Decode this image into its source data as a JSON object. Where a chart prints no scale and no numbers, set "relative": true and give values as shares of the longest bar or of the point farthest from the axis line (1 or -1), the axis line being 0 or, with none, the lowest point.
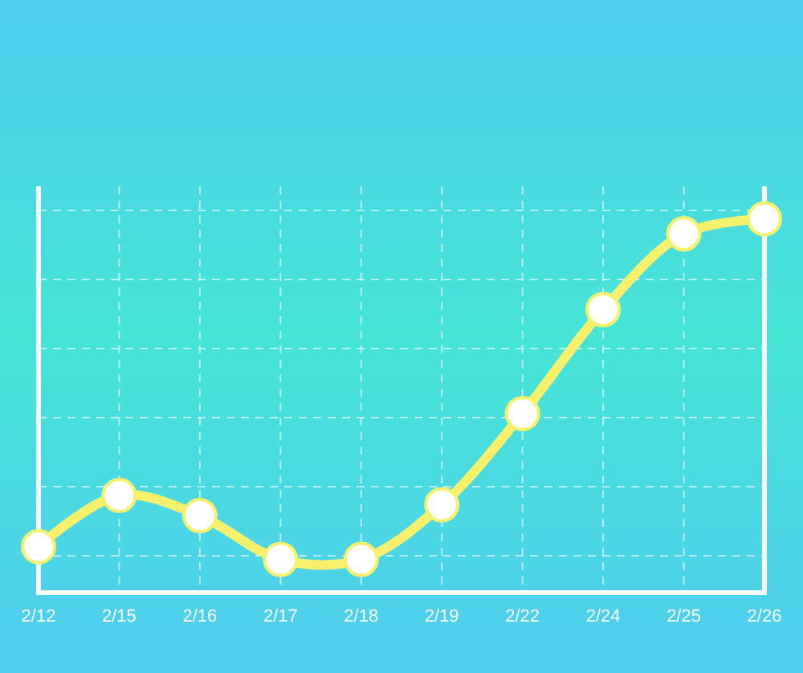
{
  "chart_data": {
    "type": "line",
    "relative": true,
    "categories": [
      "2/12",
      "2/15",
      "2/16",
      "2/17",
      "2/18",
      "2/19",
      "2/22",
      "2/24",
      "2/25",
      "2/26"
    ],
    "series": [
      {
        "color": "#f6f06c",
        "values": [
          0.123,
          0.26,
          0.206,
          0.089,
          0.089,
          0.235,
          0.479,
          0.757,
          0.96,
          1
        ]
      }
    ],
    "grid": true,
    "marker": "circle",
    "line_style": "solid"
  }
}
